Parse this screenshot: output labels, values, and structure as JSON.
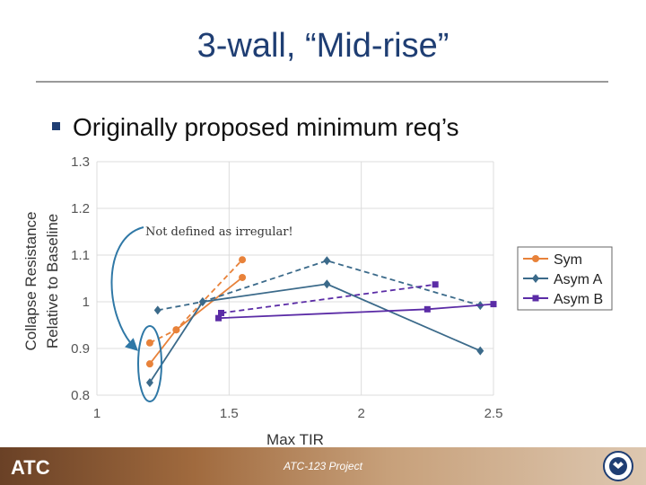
{
  "slide": {
    "title": "3-wall, “Mid-rise”",
    "bullet": "Originally proposed minimum req’s",
    "footer_text": "ATC-123 Project",
    "logo_text": "ATC"
  },
  "chart_data": {
    "type": "line",
    "title": "",
    "xlabel": "Max TIR",
    "ylabel": [
      "Collapse Resistance",
      "Relative to Baseline"
    ],
    "xlim": [
      1,
      2.5
    ],
    "ylim": [
      0.8,
      1.3
    ],
    "xticks": [
      "1",
      "1.5",
      "2",
      "2.5"
    ],
    "yticks": [
      "0.8",
      "0.9",
      "1",
      "1.1",
      "1.2",
      "1.3"
    ],
    "grid": true,
    "legend_position": "right",
    "annotation": "Not defined as irregular!",
    "series": [
      {
        "name": "Sym",
        "color": "#e8823a",
        "marker": "circle",
        "lines": [
          {
            "style": "solid",
            "x": [
              1.2,
              1.3,
              1.55
            ],
            "y": [
              0.867,
              0.94,
              1.052
            ]
          },
          {
            "style": "dashed",
            "x": [
              1.2,
              1.3,
              1.55
            ],
            "y": [
              0.912,
              0.94,
              1.09
            ]
          }
        ]
      },
      {
        "name": "Asym A",
        "color": "#3b6a8a",
        "marker": "diamond",
        "lines": [
          {
            "style": "solid",
            "x": [
              1.2,
              1.4,
              1.87,
              2.45
            ],
            "y": [
              0.827,
              1.0,
              1.038,
              0.895
            ]
          },
          {
            "style": "dashed",
            "x": [
              1.23,
              1.4,
              1.87,
              2.45
            ],
            "y": [
              0.982,
              1.0,
              1.088,
              0.992
            ]
          }
        ]
      },
      {
        "name": "Asym B",
        "color": "#5b2ca6",
        "marker": "square",
        "lines": [
          {
            "style": "solid",
            "x": [
              1.46,
              2.25,
              2.5
            ],
            "y": [
              0.965,
              0.984,
              0.995
            ]
          },
          {
            "style": "dashed",
            "x": [
              1.47,
              2.28
            ],
            "y": [
              0.976,
              1.037
            ]
          }
        ]
      }
    ]
  }
}
